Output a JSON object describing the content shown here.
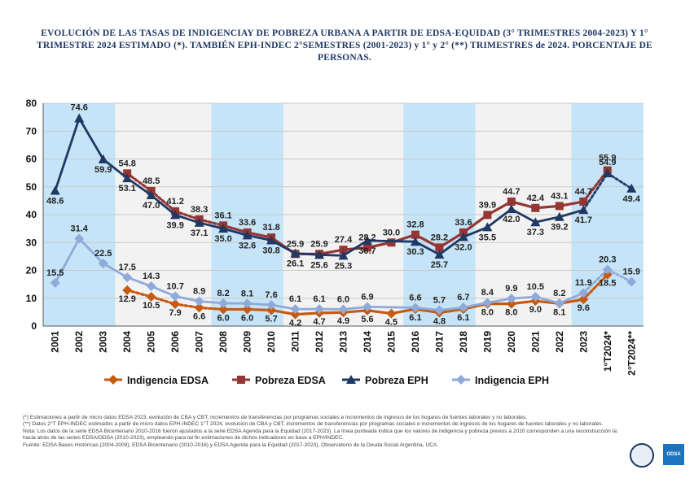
{
  "title": "EVOLUCIÓN DE LAS TASAS DE INDIGENCIAY DE POBREZA URBANA A PARTIR DE EDSA-EQUIDAD (3° TRIMESTRES 2004-2023) Y 1° TRIMESTRE 2024 ESTIMADO (*). TAMBIÉN EPH-INDEC 2°SEMESTRES (2001-2023) y 1° y 2° (**) TRIMESTRES de 2024. PORCENTAJE DE PERSONAS.",
  "chart_data": {
    "type": "line",
    "categories": [
      "2001",
      "2002",
      "2003",
      "2004",
      "2005",
      "2006",
      "2007",
      "2008",
      "2009",
      "2010",
      "2011",
      "2012",
      "2013",
      "2014",
      "2015",
      "2016",
      "2017",
      "2018",
      "2019",
      "2020",
      "2021",
      "2022",
      "2023",
      "1°T2024*",
      "2°T2024**"
    ],
    "ylim": [
      0,
      80
    ],
    "yticks": [
      0,
      10,
      20,
      30,
      40,
      50,
      60,
      70,
      80
    ],
    "grid": true,
    "legend_position": "bottom",
    "shaded_bands_categories": [
      [
        "2001",
        "2003"
      ],
      [
        "2008",
        "2010"
      ],
      [
        "2016",
        "2018"
      ],
      [
        "2023",
        "2°T2024**"
      ]
    ],
    "series": [
      {
        "name": "Indigencia EDSA",
        "color": "#c55a11",
        "marker": "diamond",
        "values": [
          null,
          null,
          null,
          12.9,
          10.5,
          7.9,
          6.6,
          6.0,
          6.0,
          5.7,
          4.2,
          4.7,
          4.9,
          5.6,
          4.5,
          6.1,
          4.8,
          6.1,
          8.0,
          8.0,
          9.0,
          8.1,
          9.6,
          18.5,
          null
        ],
        "labels": [
          "",
          "",
          "",
          "12.9",
          "10.5",
          "7.9",
          "6.6",
          "6.0",
          "6.0",
          "5.7",
          "4.2",
          "4.7",
          "4.9",
          "5.6",
          "4.5",
          "6.1",
          "4.8",
          "6.1",
          "8.0",
          "8.0",
          "9.0",
          "8.1",
          "9.6",
          "18.5",
          ""
        ]
      },
      {
        "name": "Pobreza EDSA",
        "color": "#943634",
        "marker": "square",
        "values": [
          null,
          null,
          null,
          54.8,
          48.5,
          41.2,
          38.3,
          36.1,
          33.6,
          31.8,
          25.9,
          25.9,
          27.4,
          28.2,
          30.0,
          32.8,
          28.2,
          33.6,
          39.9,
          44.7,
          42.4,
          43.1,
          44.7,
          55.9,
          null
        ],
        "labels": [
          "",
          "",
          "",
          "54.8",
          "48.5",
          "41.2",
          "38.3",
          "36.1",
          "33.6",
          "31.8",
          "25.9",
          "25.9",
          "27.4",
          "28.2",
          "30.0",
          "32.8",
          "28.2",
          "33.6",
          "39.9",
          "44.7",
          "42.4",
          "43.1",
          "44.7",
          "55.9",
          ""
        ]
      },
      {
        "name": "Pobreza EPH",
        "color": "#1f3864",
        "marker": "triangle",
        "values": [
          48.6,
          74.6,
          59.9,
          53.1,
          47.0,
          39.9,
          37.1,
          35.0,
          32.6,
          30.8,
          26.1,
          25.6,
          25.3,
          30.7,
          null,
          30.3,
          25.7,
          32.0,
          35.5,
          42.0,
          37.3,
          39.2,
          41.7,
          54.9,
          49.4
        ],
        "labels": [
          "48.6",
          "74.6",
          "59.9",
          "53.1",
          "47.0",
          "39.9",
          "37.1",
          "35.0",
          "32.6",
          "30.8",
          "26.1",
          "25.6",
          "25.3",
          "30.7",
          "",
          "30.3",
          "25.7",
          "32.0",
          "35.5",
          "42.0",
          "37.3",
          "39.2",
          "41.7",
          "54.9",
          "49.4"
        ]
      },
      {
        "name": "Indigencia EPH",
        "color": "#8eaadb",
        "marker": "diamond",
        "values": [
          15.5,
          31.4,
          22.5,
          17.5,
          14.3,
          10.7,
          8.9,
          8.2,
          8.1,
          7.6,
          6.1,
          6.1,
          6.0,
          6.9,
          null,
          6.6,
          5.7,
          6.7,
          8.4,
          9.9,
          10.5,
          8.2,
          11.9,
          20.3,
          15.9
        ],
        "labels": [
          "15.5",
          "31.4",
          "22.5",
          "17.5",
          "14.3",
          "10.7",
          "8.9",
          "8.2",
          "8.1",
          "7.6",
          "6.1",
          "6.1",
          "6.0",
          "6.9",
          "",
          "6.6",
          "5.7",
          "6.7",
          "8.4",
          "9.9",
          "10.5",
          "8.2",
          "11.9",
          "20.3",
          "15.9"
        ]
      }
    ]
  },
  "notes": [
    "(*) Estimaciones a partir de micro datos EDSA 2023, evolución de CBA y CBT, incrementos de transferencias por programas sociales e incrementos de ingresos  de los hogares de fuentes laborales y no laborales.",
    "(**) Datos 2°T EPH-INDEC estimados a partir de micro datos EPH-INDEC 1°T 2024, evolución de CBA y CBT, incrementos de transferencias por programas sociales e incrementos de ingresos  de los hogares de fuentes laborales y no laborales.",
    "Nota: Los datos de la serie EDSA Bicentenario 2010-2016 fueron ajustados a la serie EDSA Agenda para la Equidad (2017-2023). La línea punteada indica que los valores de indigencia y pobreza previos a 2010 corresponden a una reconstrucción ta: hacia atrás de las series EDSA/ODSA (2010-2023), empleando para tal fin estimaciones de dichos indicadores en base a EPH/INDEC.",
    "Fuente: EDSA Bases Históricas (2004-2009), EDSA Bicentenario (2010-2016) y EDSA Agenda para la Equidad (2017-2023), Observatorio de la Deuda Social Argentina, UCA."
  ],
  "logo2_text": "ODSA"
}
